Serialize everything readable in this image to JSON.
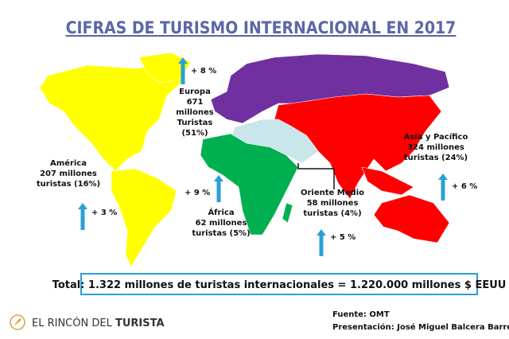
{
  "title": "CIFRAS DE TURISMO INTERNACIONAL EN 2017",
  "regions": [
    {
      "lines": [
        "Europa",
        "671",
        "millones",
        "Turistas",
        "(51%)"
      ],
      "growth": "+ 8 %"
    },
    {
      "lines": [
        "América",
        "207 millones",
        "turistas   (16%)"
      ],
      "growth": "+ 3 %"
    },
    {
      "lines": [
        "África",
        "62 millones",
        "turistas  (5%)"
      ],
      "growth": "+ 9 %"
    },
    {
      "lines": [
        "Oriente Medio",
        "58 millones",
        "turistas  (4%)"
      ],
      "growth": "+ 5 %"
    },
    {
      "lines": [
        "Asia  y Pacífico",
        "324 millones",
        "turistas  (24%)"
      ],
      "growth": "+ 6 %"
    }
  ],
  "total": "Total: 1.322 millones de turistas internacionales = 1.220.000 millones $ EEUU",
  "logo": {
    "prefix": "EL RINCÓN DEL",
    "brand": "TURISTA"
  },
  "source": "Fuente:  OMT",
  "presentation": "Presentación:  José  Miguel  Balcera  Barrero"
}
